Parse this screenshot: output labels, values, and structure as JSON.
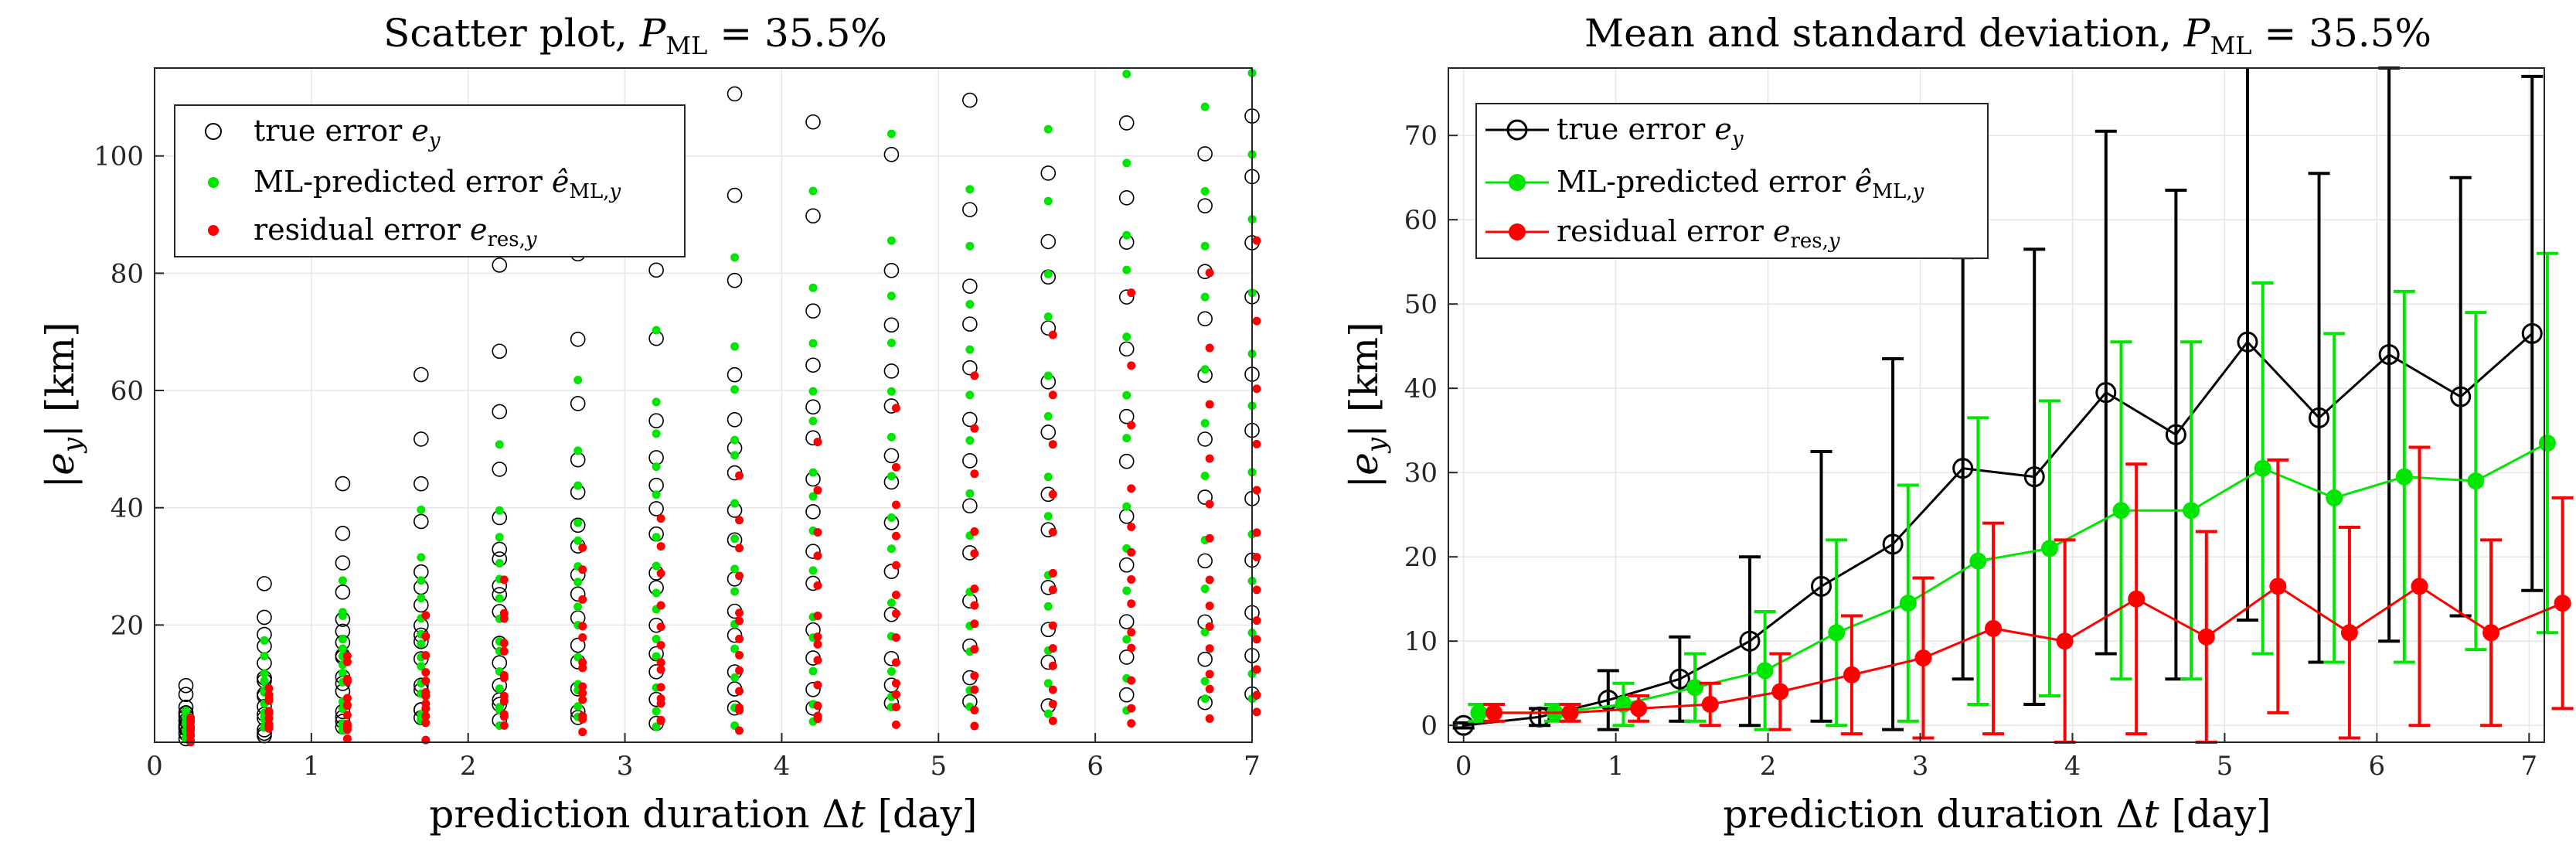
{
  "chart_data": [
    {
      "type": "scatter",
      "title": "Scatter plot, P_ML = 35.5%",
      "xlabel": "prediction duration Δt [day]",
      "ylabel": "|e_y| [km]",
      "xlim": [
        0,
        7
      ],
      "ylim": [
        0,
        115
      ],
      "xticks": [
        "0",
        "1",
        "2",
        "3",
        "4",
        "5",
        "6",
        "7"
      ],
      "yticks": [
        "20",
        "40",
        "60",
        "80",
        "100"
      ],
      "grid": true,
      "legend_position": "top-left",
      "series": [
        {
          "name": "true error e_y",
          "color": "#000000",
          "marker": "open-circle",
          "slopes": [
            1,
            2,
            3,
            4.5,
            6,
            7.5,
            9,
            10.5,
            12,
            13.5,
            15,
            17,
            21,
            25,
            30,
            36
          ],
          "x_points": [
            0.2,
            0.7,
            1.2,
            1.7,
            2.2,
            2.7,
            3.2,
            3.7,
            4.2,
            4.7,
            5.2,
            5.7,
            6.2,
            6.7,
            7.0
          ]
        },
        {
          "name": "ML-predicted error ê_ML,y",
          "color": "#00e600",
          "marker": "dot",
          "slopes": [
            0.8,
            1.6,
            2.6,
            3.8,
            5,
            6.5,
            8,
            9.5,
            11,
            12.7,
            14,
            16,
            18,
            22
          ],
          "x_points": [
            0.2,
            0.7,
            1.2,
            1.7,
            2.2,
            2.7,
            3.2,
            3.7,
            4.2,
            4.7,
            5.2,
            5.7,
            6.2,
            6.7,
            7.0
          ]
        },
        {
          "name": "residual error e_res,y",
          "color": "#ff0000",
          "marker": "dot",
          "slopes": [
            0.5,
            1,
            1.6,
            2.2,
            2.8,
            3.5,
            4.2,
            5,
            6,
            7,
            8.5,
            10,
            12
          ],
          "x_points": [
            0.2,
            0.7,
            1.2,
            1.7,
            2.2,
            2.7,
            3.2,
            3.7,
            4.2,
            4.7,
            5.2,
            5.7,
            6.2,
            6.7,
            7.0
          ]
        }
      ]
    },
    {
      "type": "line",
      "title": "Mean and standard deviation, P_ML = 35.5%",
      "xlabel": "prediction duration Δt [day]",
      "ylabel": "|e_y| [km]",
      "xlim": [
        -0.1,
        7.1
      ],
      "ylim": [
        -2,
        78
      ],
      "xticks": [
        "0",
        "1",
        "2",
        "3",
        "4",
        "5",
        "6",
        "7"
      ],
      "yticks": [
        "0",
        "10",
        "20",
        "30",
        "40",
        "50",
        "60",
        "70"
      ],
      "grid": true,
      "legend_position": "top-left",
      "series": [
        {
          "name": "true error e_y",
          "color": "#000000",
          "marker": "open-circle",
          "x": [
            0,
            0.5,
            0.95,
            1.42,
            1.88,
            2.35,
            2.82,
            3.28,
            3.75,
            4.22,
            4.68,
            5.15,
            5.62,
            6.08,
            6.55,
            7.02
          ],
          "y": [
            0,
            1,
            3,
            5.5,
            10,
            16.5,
            21.5,
            30.5,
            29.5,
            39.5,
            34.5,
            45.5,
            36.5,
            44,
            39,
            46.5
          ],
          "err": [
            0.3,
            1,
            3.5,
            5,
            10,
            16,
            22,
            25,
            27,
            31,
            29,
            33,
            29,
            34,
            26,
            30.5
          ]
        },
        {
          "name": "ML-predicted error ê_ML,y",
          "color": "#00e600",
          "marker": "filled-circle",
          "x": [
            0.1,
            0.6,
            1.05,
            1.52,
            1.98,
            2.45,
            2.92,
            3.38,
            3.85,
            4.32,
            4.78,
            5.25,
            5.72,
            6.18,
            6.65,
            7.12
          ],
          "y": [
            1.5,
            1.5,
            2.5,
            4.5,
            6.5,
            11,
            14.5,
            19.5,
            21,
            25.5,
            25.5,
            30.5,
            27,
            29.5,
            29,
            33.5
          ],
          "err": [
            1,
            1,
            2.5,
            4,
            7,
            11,
            14,
            17,
            17.5,
            20,
            20,
            22,
            19.5,
            22,
            20,
            22.5
          ]
        },
        {
          "name": "residual error e_res,y",
          "color": "#ff0000",
          "marker": "filled-circle",
          "x": [
            0.2,
            0.7,
            1.15,
            1.62,
            2.08,
            2.55,
            3.02,
            3.48,
            3.95,
            4.42,
            4.88,
            5.35,
            5.82,
            6.28,
            6.75,
            7.22
          ],
          "y": [
            1.5,
            1.5,
            2,
            2.5,
            4,
            6,
            8,
            11.5,
            10,
            15,
            10.5,
            16.5,
            11,
            16.5,
            11,
            14.5
          ],
          "err": [
            1,
            1,
            1.5,
            2.5,
            4.5,
            7,
            9.5,
            12.5,
            12,
            16,
            12.5,
            15,
            12.5,
            16.5,
            11,
            12.5
          ]
        }
      ]
    }
  ]
}
